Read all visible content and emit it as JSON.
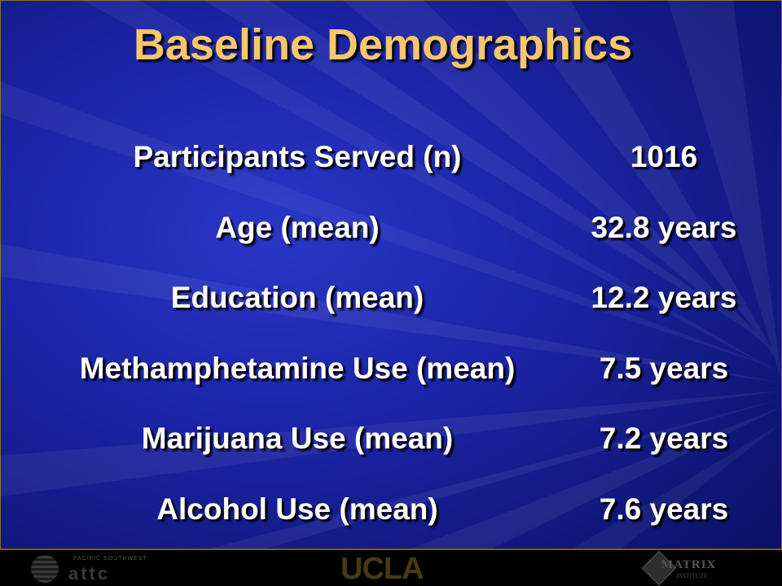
{
  "slide": {
    "title": "Baseline Demographics",
    "colors": {
      "title": "#f6c66b",
      "text": "#ffffff",
      "background": "#1b24a6"
    },
    "rows": [
      {
        "label": "Participants Served (n)",
        "value": "1016"
      },
      {
        "label": "Age (mean)",
        "value": "32.8 years"
      },
      {
        "label": "Education (mean)",
        "value": "12.2 years"
      },
      {
        "label": "Methamphetamine Use (mean)",
        "value": "7.5 years"
      },
      {
        "label": "Marijuana Use (mean)",
        "value": "7.2 years"
      },
      {
        "label": "Alcohol Use (mean)",
        "value": "7.6 years"
      }
    ]
  },
  "footer": {
    "attc_small": "PACIFIC SOUTHWEST",
    "attc": "attc",
    "ucla": "UCLA",
    "matrix": "MATRIX",
    "matrix_sub": "INSTITUTE"
  }
}
